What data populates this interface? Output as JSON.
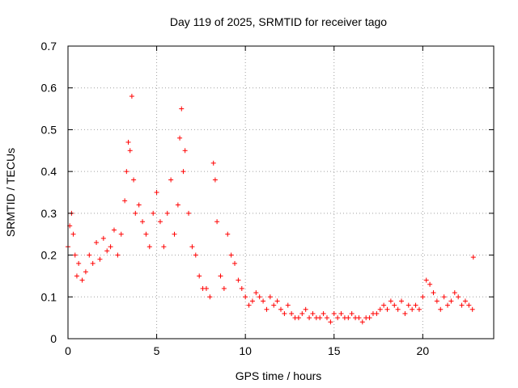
{
  "chart_data": {
    "type": "scatter",
    "title": "Day 119 of 2025, SRMTID for receiver tago",
    "xlabel": "GPS time / hours",
    "ylabel": "SRMTID / TECUs",
    "xlim": [
      0,
      24
    ],
    "ylim": [
      0,
      0.7
    ],
    "xticks": [
      0,
      5,
      10,
      15,
      20
    ],
    "yticks": [
      0,
      0.1,
      0.2,
      0.3,
      0.4,
      0.5,
      0.6,
      0.7
    ],
    "grid": true,
    "marker": "+",
    "color": "#ff0000",
    "series": [
      {
        "name": "SRMTID",
        "x": [
          0.0,
          0.1,
          0.2,
          0.3,
          0.4,
          0.5,
          0.6,
          0.8,
          1.0,
          1.2,
          1.4,
          1.6,
          1.8,
          2.0,
          2.2,
          2.4,
          2.6,
          2.8,
          3.0,
          3.2,
          3.3,
          3.4,
          3.5,
          3.6,
          3.7,
          3.8,
          4.0,
          4.2,
          4.4,
          4.6,
          4.8,
          5.0,
          5.2,
          5.4,
          5.6,
          5.8,
          6.0,
          6.2,
          6.3,
          6.4,
          6.5,
          6.6,
          6.8,
          7.0,
          7.2,
          7.4,
          7.6,
          7.8,
          8.0,
          8.2,
          8.3,
          8.4,
          8.6,
          8.8,
          9.0,
          9.2,
          9.4,
          9.6,
          9.8,
          10.0,
          10.2,
          10.4,
          10.6,
          10.8,
          11.0,
          11.2,
          11.4,
          11.6,
          11.8,
          12.0,
          12.2,
          12.4,
          12.6,
          12.8,
          13.0,
          13.2,
          13.4,
          13.6,
          13.8,
          14.0,
          14.2,
          14.4,
          14.6,
          14.8,
          15.0,
          15.2,
          15.4,
          15.6,
          15.8,
          16.0,
          16.2,
          16.4,
          16.6,
          16.8,
          17.0,
          17.2,
          17.4,
          17.6,
          17.8,
          18.0,
          18.2,
          18.4,
          18.6,
          18.8,
          19.0,
          19.2,
          19.4,
          19.6,
          19.8,
          20.0,
          20.2,
          20.4,
          20.6,
          20.8,
          21.0,
          21.2,
          21.4,
          21.6,
          21.8,
          22.0,
          22.2,
          22.4,
          22.6,
          22.8,
          22.85
        ],
        "y": [
          0.22,
          0.27,
          0.3,
          0.25,
          0.2,
          0.15,
          0.18,
          0.14,
          0.16,
          0.2,
          0.18,
          0.23,
          0.19,
          0.24,
          0.21,
          0.22,
          0.26,
          0.2,
          0.25,
          0.33,
          0.4,
          0.47,
          0.45,
          0.58,
          0.38,
          0.3,
          0.32,
          0.28,
          0.25,
          0.22,
          0.3,
          0.35,
          0.28,
          0.22,
          0.3,
          0.38,
          0.25,
          0.32,
          0.48,
          0.55,
          0.4,
          0.45,
          0.3,
          0.22,
          0.2,
          0.15,
          0.12,
          0.12,
          0.1,
          0.42,
          0.38,
          0.28,
          0.15,
          0.12,
          0.25,
          0.2,
          0.18,
          0.14,
          0.12,
          0.1,
          0.08,
          0.09,
          0.11,
          0.1,
          0.09,
          0.07,
          0.1,
          0.08,
          0.09,
          0.07,
          0.06,
          0.08,
          0.06,
          0.05,
          0.05,
          0.06,
          0.07,
          0.05,
          0.06,
          0.05,
          0.05,
          0.06,
          0.05,
          0.04,
          0.06,
          0.05,
          0.06,
          0.05,
          0.05,
          0.06,
          0.05,
          0.05,
          0.04,
          0.05,
          0.05,
          0.06,
          0.06,
          0.07,
          0.08,
          0.07,
          0.09,
          0.08,
          0.07,
          0.09,
          0.06,
          0.08,
          0.07,
          0.08,
          0.07,
          0.1,
          0.14,
          0.13,
          0.11,
          0.09,
          0.07,
          0.1,
          0.08,
          0.09,
          0.11,
          0.1,
          0.08,
          0.09,
          0.08,
          0.07,
          0.195
        ]
      }
    ]
  }
}
